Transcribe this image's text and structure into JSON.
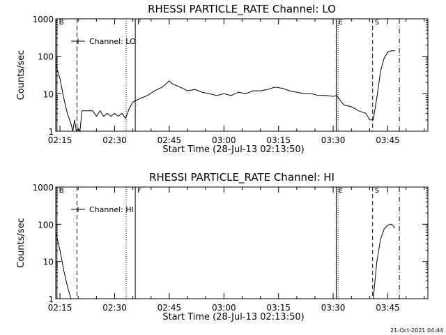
{
  "chart_data": [
    {
      "type": "line",
      "title": "RHESSI PARTICLE_RATE Channel: LO",
      "xlabel": "Start Time (28-Jul-13 02:13:50)",
      "ylabel": "Counts/sec",
      "y_scale": "log",
      "xlim": [
        "02:13:50",
        "03:56:00"
      ],
      "ylim": [
        1,
        1000
      ],
      "x_tick_labels": [
        "02:15",
        "02:30",
        "02:45",
        "03:00",
        "03:15",
        "03:30",
        "03:45"
      ],
      "y_tick_labels": [
        "1",
        "10",
        "100",
        "1000"
      ],
      "legend": "top-left",
      "series": [
        {
          "name": "Channel: LO",
          "x": [
            "02:13:50",
            "02:15:00",
            "02:16:00",
            "02:17:00",
            "02:18:00",
            "02:18:30",
            "02:19:00",
            "02:19:30",
            "02:20:00",
            "02:20:30",
            "02:21:00",
            "02:22:00",
            "02:23:00",
            "02:24:00",
            "02:25:00",
            "02:26:00",
            "02:27:00",
            "02:28:00",
            "02:29:00",
            "02:30:00",
            "02:31:00",
            "02:32:00",
            "02:33:00",
            "02:34:00",
            "02:35:00",
            "02:37:00",
            "02:39:00",
            "02:41:00",
            "02:43:00",
            "02:44:00",
            "02:45:00",
            "02:46:00",
            "02:48:00",
            "02:50:00",
            "02:52:00",
            "02:54:00",
            "02:56:00",
            "02:58:00",
            "03:00:00",
            "03:02:00",
            "03:04:00",
            "03:06:00",
            "03:08:00",
            "03:10:00",
            "03:12:00",
            "03:14:00",
            "03:16:00",
            "03:18:00",
            "03:20:00",
            "03:22:00",
            "03:24:00",
            "03:26:00",
            "03:28:00",
            "03:30:00",
            "03:31:00",
            "03:32:00",
            "03:33:00",
            "03:35:00",
            "03:37:00",
            "03:39:00",
            "03:40:00",
            "03:41:00",
            "03:42:00",
            "03:43:00",
            "03:44:00",
            "03:45:00",
            "03:46:00",
            "03:47:00"
          ],
          "y": [
            60,
            25,
            8,
            3,
            1.6,
            1.0,
            2.0,
            1.0,
            1.2,
            1.0,
            3.5,
            3.5,
            3.5,
            3.5,
            2.5,
            3.5,
            2.5,
            3.0,
            2.5,
            3.0,
            2.5,
            3.0,
            2.2,
            4.0,
            6.0,
            7.5,
            9.0,
            12,
            15,
            18,
            22,
            18,
            15,
            12,
            13,
            11,
            10,
            9,
            10,
            9,
            11,
            10,
            12,
            12,
            13,
            15,
            14,
            12,
            11,
            10,
            10,
            9,
            9,
            8.5,
            9,
            6.5,
            5,
            4.5,
            3.5,
            3.0,
            2.0,
            2.0,
            8,
            40,
            90,
            130,
            140,
            140
          ]
        }
      ],
      "markers": [
        {
          "label": "B",
          "x": "02:14:10",
          "style": "solid"
        },
        {
          "label": "",
          "x": "02:19:40",
          "style": "dashed"
        },
        {
          "label": "",
          "x": "02:33:10",
          "style": "dotted"
        },
        {
          "label": "F",
          "x": "02:35:40",
          "style": "solid"
        },
        {
          "label": "E",
          "x": "03:30:50",
          "style": "solid"
        },
        {
          "label": "",
          "x": "03:31:20",
          "style": "dotted"
        },
        {
          "label": "S",
          "x": "03:40:50",
          "style": "dashed"
        },
        {
          "label": "",
          "x": "03:48:10",
          "style": "dashdot"
        }
      ]
    },
    {
      "type": "line",
      "title": "RHESSI PARTICLE_RATE Channel: HI",
      "xlabel": "Start Time (28-Jul-13 02:13:50)",
      "ylabel": "Counts/sec",
      "y_scale": "log",
      "xlim": [
        "02:13:50",
        "03:56:00"
      ],
      "ylim": [
        1,
        1000
      ],
      "x_tick_labels": [
        "02:15",
        "02:30",
        "02:45",
        "03:00",
        "03:15",
        "03:30",
        "03:45"
      ],
      "y_tick_labels": [
        "1",
        "10",
        "100",
        "1000"
      ],
      "legend": "top-left",
      "series": [
        {
          "name": "Channel: HI",
          "x": [
            "02:13:50",
            "02:15:00",
            "02:16:00",
            "02:17:00",
            "02:18:00",
            "03:41:00",
            "03:42:00",
            "03:43:00",
            "03:44:00",
            "03:45:00",
            "03:46:00",
            "03:47:00"
          ],
          "y": [
            60,
            20,
            6,
            2.2,
            1.0,
            1.0,
            10,
            40,
            75,
            95,
            100,
            80
          ]
        }
      ],
      "markers": [
        {
          "label": "B",
          "x": "02:14:10",
          "style": "solid"
        },
        {
          "label": "",
          "x": "02:19:40",
          "style": "dashed"
        },
        {
          "label": "",
          "x": "02:33:10",
          "style": "dotted"
        },
        {
          "label": "F",
          "x": "02:35:40",
          "style": "solid"
        },
        {
          "label": "E",
          "x": "03:30:50",
          "style": "solid"
        },
        {
          "label": "",
          "x": "03:31:20",
          "style": "dotted"
        },
        {
          "label": "S",
          "x": "03:40:50",
          "style": "dashed"
        },
        {
          "label": "",
          "x": "03:48:10",
          "style": "dashdot"
        }
      ]
    }
  ],
  "footer": {
    "timestamp": "21-Oct-2021 04:44"
  }
}
